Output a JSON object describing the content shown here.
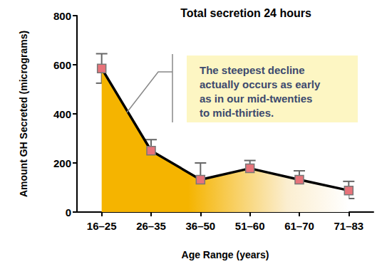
{
  "chart_data": {
    "type": "area",
    "title": "Total secretion 24 hours",
    "x_label": "Age Range (years)",
    "y_label": "Amount GH Secreted (micrograms)",
    "annotation": "The steepest decline\nactually occurs as early\nas in our mid-twenties\nto mid-thirties.",
    "categories": [
      "16–25",
      "26–35",
      "36–50",
      "51–60",
      "61–70",
      "71–83"
    ],
    "values": [
      585,
      250,
      132,
      178,
      132,
      88
    ],
    "error_low": [
      525,
      205,
      65,
      145,
      98,
      55
    ],
    "error_high": [
      645,
      295,
      200,
      210,
      168,
      125
    ],
    "color": "#f5b400",
    "marker": "square",
    "ylim": [
      0,
      800
    ],
    "yticks": [
      0,
      200,
      400,
      600,
      800
    ],
    "grid": false
  }
}
